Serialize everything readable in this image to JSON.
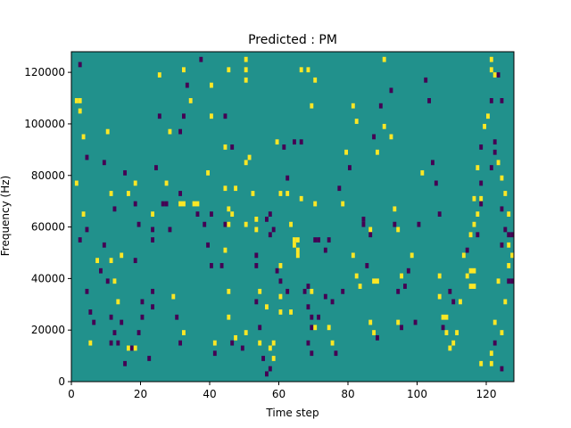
{
  "chart_data": {
    "type": "heatmap",
    "title": "Predicted : PM",
    "xlabel": "Time step",
    "ylabel": "Frequency (Hz)",
    "xlim": [
      0,
      128
    ],
    "ylim": [
      0,
      128000
    ],
    "xticks": [
      0,
      20,
      40,
      60,
      80,
      100,
      120
    ],
    "yticks": [
      0,
      20000,
      40000,
      60000,
      80000,
      100000,
      120000
    ],
    "ytick_labels": [
      "0",
      "20000",
      "40000",
      "60000",
      "80000",
      "100000",
      "120000"
    ],
    "grid": false,
    "colormap": [
      "#440154",
      "#21918c",
      "#fde725"
    ],
    "value_levels": [
      -1,
      0,
      1
    ],
    "background_value": 0,
    "bin_size": {
      "x": 1,
      "y": 2000
    },
    "cells": [
      [
        2,
        122000,
        -1
      ],
      [
        2,
        108000,
        1
      ],
      [
        1,
        108000,
        1
      ],
      [
        2,
        104000,
        1
      ],
      [
        3,
        94000,
        1
      ],
      [
        4,
        86000,
        -1
      ],
      [
        1,
        76000,
        1
      ],
      [
        3,
        64000,
        1
      ],
      [
        4,
        58000,
        -1
      ],
      [
        2,
        54000,
        -1
      ],
      [
        7,
        46000,
        1
      ],
      [
        8,
        42000,
        -1
      ],
      [
        4,
        34000,
        -1
      ],
      [
        5,
        26000,
        -1
      ],
      [
        6,
        22000,
        -1
      ],
      [
        5,
        14000,
        1
      ],
      [
        10,
        96000,
        1
      ],
      [
        9,
        84000,
        -1
      ],
      [
        11,
        72000,
        1
      ],
      [
        12,
        66000,
        -1
      ],
      [
        9,
        52000,
        -1
      ],
      [
        11,
        46000,
        1
      ],
      [
        10,
        38000,
        -1
      ],
      [
        12,
        38000,
        1
      ],
      [
        11,
        24000,
        -1
      ],
      [
        12,
        18000,
        -1
      ],
      [
        11,
        14000,
        -1
      ],
      [
        13,
        14000,
        -1
      ],
      [
        14,
        22000,
        -1
      ],
      [
        16,
        12000,
        1
      ],
      [
        17,
        12000,
        -1
      ],
      [
        15,
        6000,
        -1
      ],
      [
        13,
        30000,
        1
      ],
      [
        14,
        48000,
        1
      ],
      [
        16,
        72000,
        1
      ],
      [
        15,
        80000,
        -1
      ],
      [
        18,
        76000,
        1
      ],
      [
        18,
        68000,
        -1
      ],
      [
        19,
        60000,
        -1
      ],
      [
        18,
        46000,
        -1
      ],
      [
        20,
        30000,
        -1
      ],
      [
        20,
        24000,
        -1
      ],
      [
        19,
        18000,
        -1
      ],
      [
        18,
        12000,
        1
      ],
      [
        22,
        8000,
        -1
      ],
      [
        23,
        28000,
        -1
      ],
      [
        23,
        34000,
        -1
      ],
      [
        23,
        54000,
        -1
      ],
      [
        23,
        58000,
        -1
      ],
      [
        24,
        82000,
        -1
      ],
      [
        25,
        102000,
        -1
      ],
      [
        25,
        118000,
        1
      ],
      [
        23,
        64000,
        1
      ],
      [
        26,
        68000,
        -1
      ],
      [
        27,
        68000,
        -1
      ],
      [
        27,
        76000,
        1
      ],
      [
        28,
        96000,
        1
      ],
      [
        28,
        58000,
        -1
      ],
      [
        29,
        32000,
        1
      ],
      [
        30,
        24000,
        -1
      ],
      [
        31,
        14000,
        -1
      ],
      [
        32,
        18000,
        1
      ],
      [
        31,
        68000,
        1
      ],
      [
        32,
        68000,
        1
      ],
      [
        31,
        72000,
        -1
      ],
      [
        31,
        96000,
        -1
      ],
      [
        32,
        102000,
        -1
      ],
      [
        33,
        114000,
        -1
      ],
      [
        32,
        120000,
        1
      ],
      [
        34,
        108000,
        1
      ],
      [
        37,
        124000,
        -1
      ],
      [
        35,
        68000,
        1
      ],
      [
        36,
        68000,
        1
      ],
      [
        36,
        64000,
        -1
      ],
      [
        38,
        60000,
        -1
      ],
      [
        39,
        52000,
        -1
      ],
      [
        40,
        44000,
        -1
      ],
      [
        40,
        64000,
        -1
      ],
      [
        39,
        80000,
        1
      ],
      [
        40,
        102000,
        1
      ],
      [
        41,
        14000,
        1
      ],
      [
        41,
        10000,
        -1
      ],
      [
        40,
        114000,
        1
      ],
      [
        45,
        120000,
        1
      ],
      [
        44,
        102000,
        -1
      ],
      [
        43,
        44000,
        -1
      ],
      [
        44,
        50000,
        1
      ],
      [
        44,
        60000,
        -1
      ],
      [
        44,
        74000,
        1
      ],
      [
        44,
        90000,
        1
      ],
      [
        46,
        90000,
        -1
      ],
      [
        47,
        74000,
        1
      ],
      [
        45,
        66000,
        1
      ],
      [
        45,
        60000,
        1
      ],
      [
        46,
        64000,
        1
      ],
      [
        45,
        34000,
        1
      ],
      [
        45,
        24000,
        1
      ],
      [
        46,
        14000,
        -1
      ],
      [
        47,
        16000,
        1
      ],
      [
        49,
        12000,
        -1
      ],
      [
        50,
        18000,
        1
      ],
      [
        50,
        60000,
        1
      ],
      [
        50,
        84000,
        1
      ],
      [
        50,
        116000,
        1
      ],
      [
        50,
        120000,
        1
      ],
      [
        50,
        124000,
        1
      ],
      [
        51,
        86000,
        1
      ],
      [
        52,
        72000,
        1
      ],
      [
        53,
        62000,
        1
      ],
      [
        53,
        58000,
        1
      ],
      [
        53,
        48000,
        -1
      ],
      [
        53,
        44000,
        -1
      ],
      [
        54,
        34000,
        1
      ],
      [
        53,
        30000,
        -1
      ],
      [
        54,
        20000,
        -1
      ],
      [
        54,
        14000,
        1
      ],
      [
        55,
        8000,
        -1
      ],
      [
        56,
        2000,
        -1
      ],
      [
        57,
        4000,
        -1
      ],
      [
        56,
        28000,
        1
      ],
      [
        57,
        12000,
        1
      ],
      [
        58,
        14000,
        1
      ],
      [
        58,
        8000,
        1
      ],
      [
        57,
        56000,
        -1
      ],
      [
        57,
        64000,
        -1
      ],
      [
        56,
        62000,
        -1
      ],
      [
        58,
        58000,
        -1
      ],
      [
        59,
        42000,
        -1
      ],
      [
        60,
        38000,
        -1
      ],
      [
        60,
        32000,
        1
      ],
      [
        60,
        26000,
        1
      ],
      [
        60,
        44000,
        1
      ],
      [
        60,
        72000,
        1
      ],
      [
        59,
        92000,
        1
      ],
      [
        61,
        90000,
        -1
      ],
      [
        62,
        78000,
        -1
      ],
      [
        62,
        72000,
        1
      ],
      [
        63,
        60000,
        1
      ],
      [
        62,
        34000,
        -1
      ],
      [
        63,
        26000,
        1
      ],
      [
        64,
        54000,
        1
      ],
      [
        65,
        54000,
        1
      ],
      [
        64,
        52000,
        1
      ],
      [
        65,
        50000,
        1
      ],
      [
        66,
        70000,
        1
      ],
      [
        65,
        48000,
        1
      ],
      [
        64,
        92000,
        -1
      ],
      [
        66,
        92000,
        -1
      ],
      [
        66,
        120000,
        1
      ],
      [
        67,
        34000,
        -1
      ],
      [
        68,
        36000,
        -1
      ],
      [
        69,
        34000,
        1
      ],
      [
        68,
        28000,
        -1
      ],
      [
        69,
        24000,
        -1
      ],
      [
        69,
        20000,
        -1
      ],
      [
        68,
        14000,
        -1
      ],
      [
        69,
        10000,
        -1
      ],
      [
        70,
        20000,
        1
      ],
      [
        71,
        24000,
        -1
      ],
      [
        70,
        54000,
        -1
      ],
      [
        71,
        54000,
        -1
      ],
      [
        70,
        68000,
        1
      ],
      [
        69,
        106000,
        1
      ],
      [
        68,
        120000,
        1
      ],
      [
        70,
        116000,
        1
      ],
      [
        74,
        54000,
        -1
      ],
      [
        73,
        50000,
        -1
      ],
      [
        73,
        32000,
        -1
      ],
      [
        75,
        30000,
        -1
      ],
      [
        74,
        20000,
        1
      ],
      [
        75,
        14000,
        1
      ],
      [
        76,
        10000,
        -1
      ],
      [
        78,
        34000,
        -1
      ],
      [
        78,
        68000,
        1
      ],
      [
        77,
        74000,
        -1
      ],
      [
        79,
        88000,
        1
      ],
      [
        81,
        106000,
        1
      ],
      [
        80,
        82000,
        -1
      ],
      [
        82,
        100000,
        1
      ],
      [
        81,
        48000,
        1
      ],
      [
        82,
        40000,
        1
      ],
      [
        83,
        36000,
        1
      ],
      [
        84,
        60000,
        -1
      ],
      [
        84,
        62000,
        -1
      ],
      [
        85,
        44000,
        -1
      ],
      [
        86,
        58000,
        1
      ],
      [
        87,
        38000,
        1
      ],
      [
        88,
        38000,
        1
      ],
      [
        86,
        56000,
        -1
      ],
      [
        86,
        22000,
        1
      ],
      [
        87,
        18000,
        1
      ],
      [
        88,
        16000,
        -1
      ],
      [
        87,
        94000,
        -1
      ],
      [
        88,
        88000,
        1
      ],
      [
        89,
        106000,
        -1
      ],
      [
        90,
        98000,
        1
      ],
      [
        90,
        124000,
        1
      ],
      [
        92,
        112000,
        -1
      ],
      [
        92,
        94000,
        1
      ],
      [
        93,
        66000,
        1
      ],
      [
        93,
        60000,
        -1
      ],
      [
        94,
        58000,
        1
      ],
      [
        95,
        40000,
        1
      ],
      [
        94,
        34000,
        -1
      ],
      [
        94,
        22000,
        1
      ],
      [
        95,
        20000,
        -1
      ],
      [
        96,
        36000,
        -1
      ],
      [
        97,
        42000,
        -1
      ],
      [
        98,
        48000,
        1
      ],
      [
        99,
        22000,
        -1
      ],
      [
        100,
        60000,
        -1
      ],
      [
        101,
        80000,
        1
      ],
      [
        102,
        116000,
        -1
      ],
      [
        103,
        108000,
        -1
      ],
      [
        104,
        84000,
        -1
      ],
      [
        105,
        76000,
        -1
      ],
      [
        106,
        64000,
        -1
      ],
      [
        106,
        40000,
        1
      ],
      [
        107,
        24000,
        1
      ],
      [
        108,
        24000,
        1
      ],
      [
        106,
        32000,
        1
      ],
      [
        107,
        20000,
        -1
      ],
      [
        108,
        18000,
        1
      ],
      [
        109,
        12000,
        1
      ],
      [
        110,
        14000,
        1
      ],
      [
        111,
        18000,
        1
      ],
      [
        109,
        34000,
        -1
      ],
      [
        110,
        30000,
        -1
      ],
      [
        112,
        30000,
        1
      ],
      [
        113,
        48000,
        1
      ],
      [
        114,
        50000,
        -1
      ],
      [
        114,
        40000,
        1
      ],
      [
        115,
        36000,
        1
      ],
      [
        116,
        36000,
        1
      ],
      [
        115,
        42000,
        1
      ],
      [
        116,
        42000,
        1
      ],
      [
        115,
        56000,
        1
      ],
      [
        116,
        60000,
        1
      ],
      [
        117,
        56000,
        -1
      ],
      [
        117,
        64000,
        1
      ],
      [
        116,
        70000,
        1
      ],
      [
        118,
        70000,
        1
      ],
      [
        118,
        68000,
        -1
      ],
      [
        118,
        76000,
        -1
      ],
      [
        117,
        82000,
        1
      ],
      [
        118,
        90000,
        -1
      ],
      [
        119,
        98000,
        1
      ],
      [
        120,
        102000,
        1
      ],
      [
        121,
        108000,
        -1
      ],
      [
        122,
        118000,
        1
      ],
      [
        121,
        120000,
        1
      ],
      [
        121,
        124000,
        1
      ],
      [
        123,
        118000,
        -1
      ],
      [
        124,
        108000,
        -1
      ],
      [
        122,
        92000,
        -1
      ],
      [
        122,
        88000,
        -1
      ],
      [
        121,
        82000,
        -1
      ],
      [
        123,
        84000,
        1
      ],
      [
        124,
        78000,
        1
      ],
      [
        125,
        72000,
        1
      ],
      [
        124,
        66000,
        -1
      ],
      [
        126,
        64000,
        1
      ],
      [
        125,
        58000,
        -1
      ],
      [
        126,
        56000,
        -1
      ],
      [
        127,
        56000,
        -1
      ],
      [
        124,
        52000,
        -1
      ],
      [
        123,
        38000,
        1
      ],
      [
        125,
        30000,
        1
      ],
      [
        126,
        38000,
        -1
      ],
      [
        127,
        38000,
        -1
      ],
      [
        128,
        38000,
        -1
      ],
      [
        126,
        44000,
        1
      ],
      [
        127,
        48000,
        1
      ],
      [
        126,
        52000,
        1
      ],
      [
        122,
        22000,
        1
      ],
      [
        124,
        18000,
        1
      ],
      [
        122,
        14000,
        -1
      ],
      [
        121,
        10000,
        1
      ],
      [
        121,
        6000,
        1
      ],
      [
        124,
        4000,
        -1
      ],
      [
        118,
        6000,
        1
      ]
    ]
  }
}
